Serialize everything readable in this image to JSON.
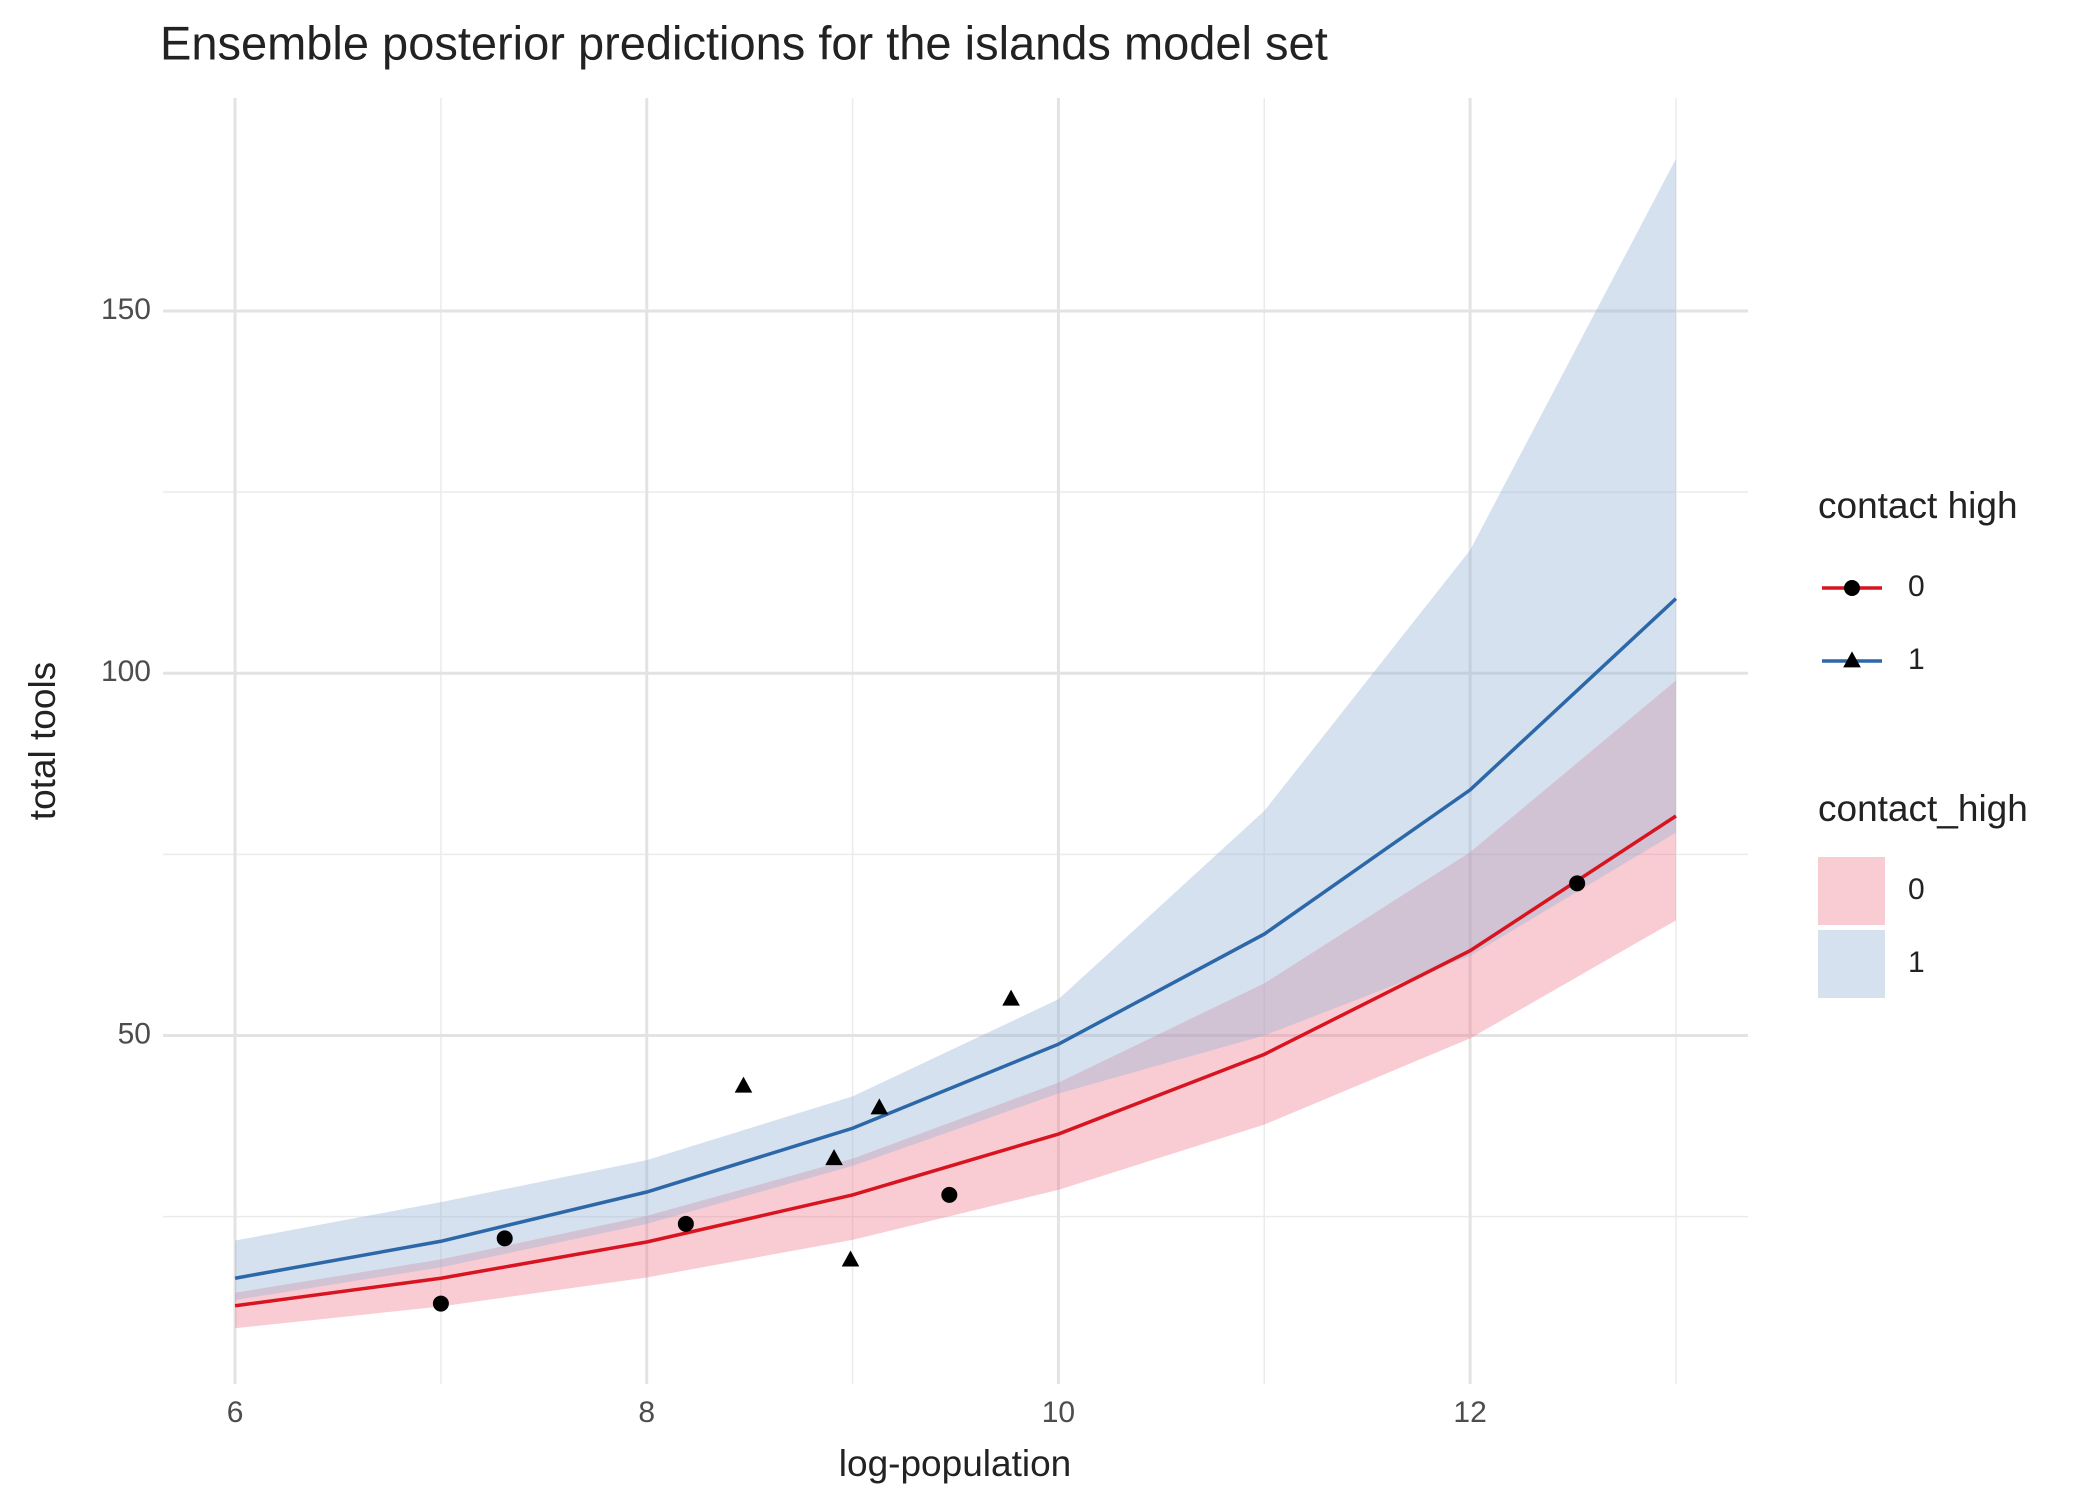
{
  "chart_data": {
    "type": "line",
    "title": "Ensemble posterior predictions for the islands model set",
    "x_label": "log-population",
    "y_label": "total tools",
    "xlim": [
      5.65,
      13.35
    ],
    "ylim": [
      1.9,
      179.4
    ],
    "xticks": [
      6,
      8,
      10,
      12
    ],
    "xminor": [
      7,
      9,
      11,
      13
    ],
    "yticks": [
      50,
      100,
      150
    ],
    "yminor": [
      25,
      75,
      125
    ],
    "grid": true,
    "legend_line_title": "contact high",
    "legend_fill_title": "contact_high",
    "series": [
      {
        "name": "0",
        "color": "#d7141f",
        "band_color": "rgba(240,120,140,0.38)",
        "marker": "circle",
        "x": [
          6,
          7,
          8,
          9,
          10,
          11,
          12,
          13
        ],
        "values": [
          12.7,
          16.5,
          21.5,
          28.0,
          36.4,
          47.4,
          61.7,
          80.3
        ],
        "lower": [
          9.6,
          12.6,
          16.6,
          21.8,
          28.7,
          37.7,
          49.6,
          65.9
        ],
        "upper": [
          14.5,
          19.1,
          25.1,
          33.0,
          43.5,
          57.2,
          75.3,
          99.0
        ],
        "points_x": [
          7.0,
          7.31,
          8.19,
          9.47,
          12.52
        ],
        "points_y": [
          13,
          22,
          24,
          28,
          71
        ]
      },
      {
        "name": "1",
        "color": "#2c67a8",
        "band_color": "rgba(150,180,215,0.4)",
        "marker": "triangle",
        "x": [
          6,
          7,
          8,
          9,
          10,
          11,
          12,
          13
        ],
        "values": [
          16.5,
          21.6,
          28.4,
          37.2,
          48.8,
          64.0,
          83.9,
          110.3
        ],
        "lower": [
          13.5,
          18,
          24,
          32,
          42,
          50,
          61,
          78
        ],
        "upper": [
          21.7,
          27,
          32.8,
          41.6,
          55,
          81,
          117,
          171
        ],
        "points_x": [
          8.47,
          8.91,
          8.99,
          9.13,
          9.77
        ],
        "points_y": [
          43,
          33,
          19,
          40,
          55
        ]
      }
    ]
  }
}
